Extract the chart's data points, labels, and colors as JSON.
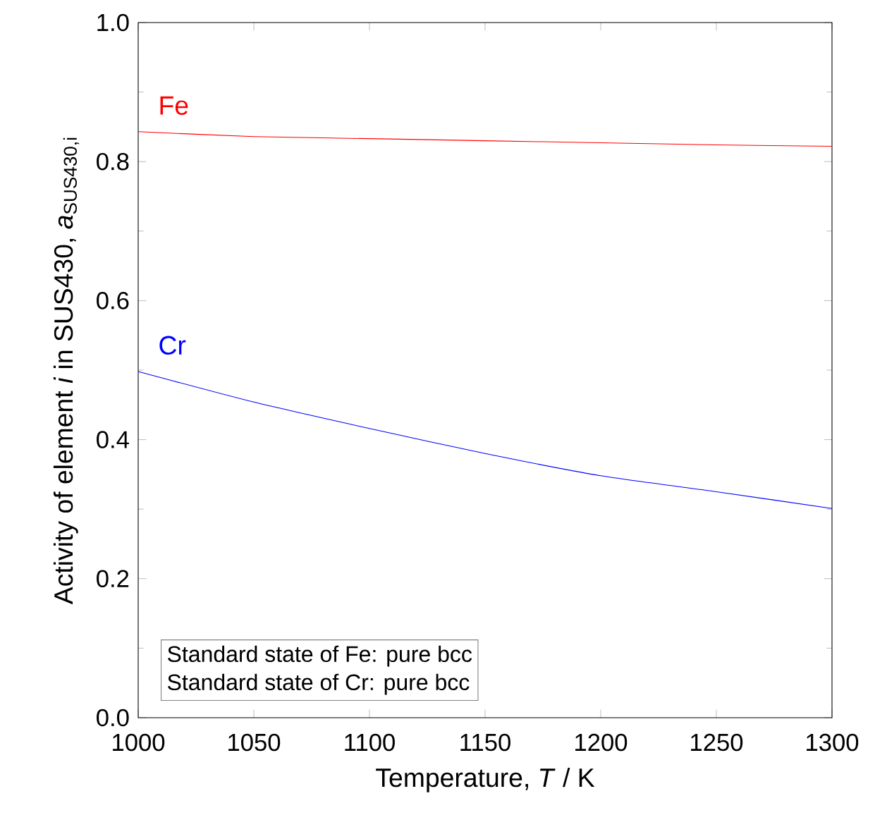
{
  "chart_data": {
    "type": "line",
    "xlabel": "Temperature, *T* / K",
    "ylabel": "Activity of element *i* in SUS430, *a*$_{SUS430,i}$",
    "x": [
      1000,
      1050,
      1100,
      1150,
      1200,
      1250,
      1300
    ],
    "series": [
      {
        "name": "Fe",
        "color": "#ff0000",
        "values": [
          0.843,
          0.836,
          0.833,
          0.83,
          0.827,
          0.824,
          0.822
        ]
      },
      {
        "name": "Cr",
        "color": "#0000ff",
        "values": [
          0.498,
          0.454,
          0.416,
          0.38,
          0.348,
          0.325,
          0.301
        ]
      }
    ],
    "xlim": [
      1000,
      1300
    ],
    "xticks": [
      1000,
      1050,
      1100,
      1150,
      1200,
      1250,
      1300
    ],
    "ylim": [
      0,
      1.0
    ],
    "yticks": [
      {
        "value": 0,
        "label": "0.0"
      },
      {
        "value": 0.2,
        "label": "0.2"
      },
      {
        "value": 0.4,
        "label": "0.4"
      },
      {
        "value": 0.6,
        "label": "0.6"
      },
      {
        "value": 0.8,
        "label": "0.8"
      },
      {
        "value": 1.0,
        "label": "1.0"
      }
    ],
    "annotations": [
      "Standard state of Fe: pure bcc",
      "Standard state of Cr: pure bcc"
    ],
    "grid": false,
    "legend": false,
    "marker": "none",
    "line_style": "solid"
  }
}
